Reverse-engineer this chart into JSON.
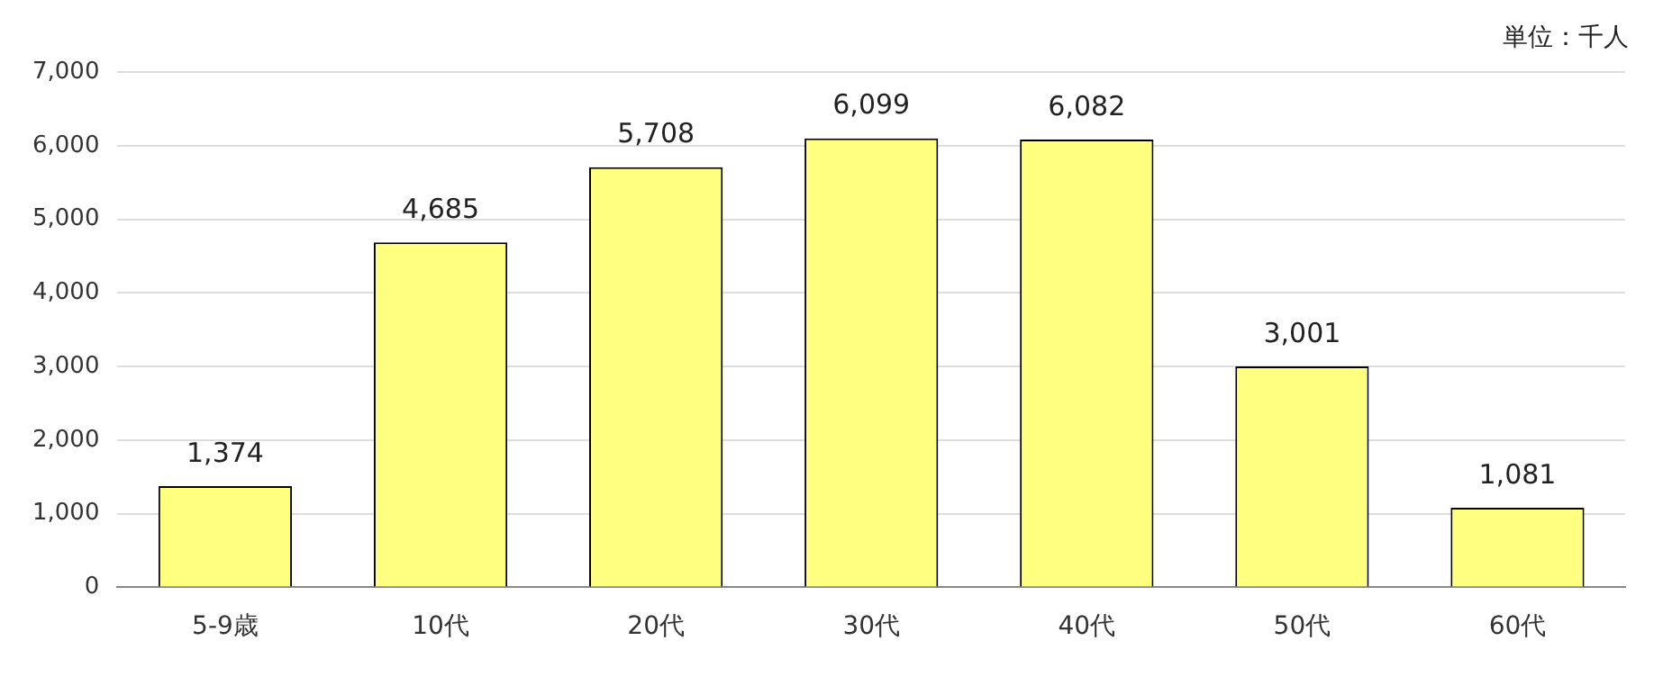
{
  "chart_data": {
    "type": "bar",
    "categories": [
      "5-9歳",
      "10代",
      "20代",
      "30代",
      "40代",
      "50代",
      "60代"
    ],
    "values": [
      1374,
      4685,
      5708,
      6099,
      6082,
      3001,
      1081
    ],
    "color": "#ffff80",
    "ylim": [
      0,
      7000
    ],
    "yticks": [
      0,
      {
        "value": 1000,
        "label": "1,000"
      },
      {
        "value": 2000,
        "label": "2,000"
      },
      {
        "value": 3000,
        "label": "3,000"
      },
      {
        "value": 4000,
        "label": "4,000"
      },
      {
        "value": 5000,
        "label": "5,000"
      },
      {
        "value": 6000,
        "label": "6,000"
      },
      {
        "value": 7000,
        "label": "7,000"
      }
    ],
    "grid": "y",
    "value_labels": [
      "1,374",
      "4,685",
      "5,708",
      "6,099",
      "6,082",
      "3,001",
      "1,081"
    ],
    "annotations": [
      "単位：千人"
    ]
  }
}
